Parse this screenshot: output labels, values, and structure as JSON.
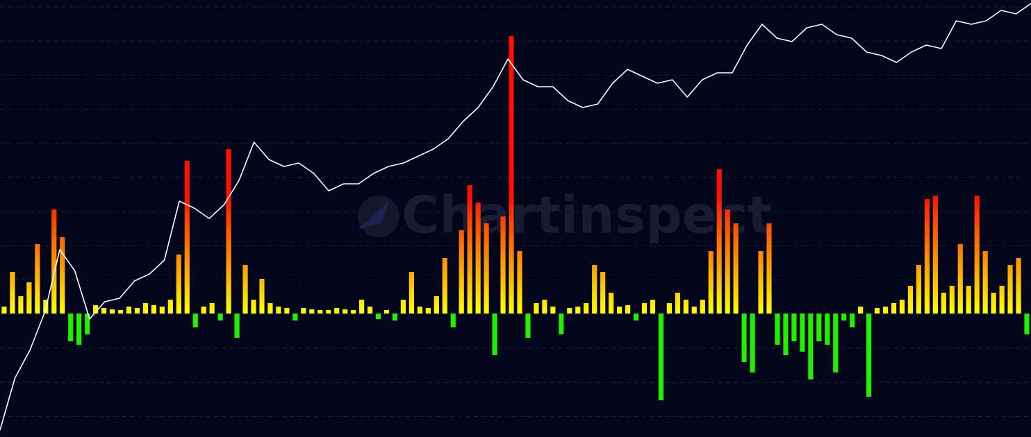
{
  "chart_data": [
    {
      "type": "bar",
      "ylim": [
        -178,
        452
      ],
      "up_colors": [
        "#ffff00",
        "#ff1000"
      ],
      "down_color": "#22ee00",
      "values": [
        10,
        60,
        25,
        45,
        100,
        20,
        150,
        110,
        -40,
        -45,
        -30,
        12,
        8,
        6,
        5,
        10,
        8,
        15,
        12,
        10,
        20,
        85,
        220,
        -20,
        10,
        15,
        -10,
        237,
        -35,
        70,
        20,
        50,
        15,
        10,
        8,
        -10,
        8,
        6,
        5,
        5,
        8,
        6,
        5,
        20,
        10,
        -8,
        5,
        -10,
        20,
        60,
        10,
        8,
        25,
        80,
        -20,
        120,
        185,
        160,
        130,
        -60,
        140,
        400,
        90,
        -35,
        15,
        20,
        10,
        -30,
        8,
        10,
        15,
        70,
        60,
        30,
        10,
        12,
        -10,
        15,
        20,
        -125,
        15,
        30,
        20,
        10,
        20,
        90,
        208,
        150,
        130,
        -70,
        -85,
        90,
        130,
        -45,
        -60,
        -40,
        -55,
        -95,
        -40,
        -45,
        -85,
        -10,
        -20,
        10,
        -120,
        8,
        10,
        15,
        20,
        40,
        70,
        165,
        170,
        30,
        40,
        100,
        40,
        170,
        90,
        30,
        40,
        70,
        80,
        -30
      ]
    },
    {
      "type": "line",
      "ylim": [
        0,
        630
      ],
      "color": "#ffffff",
      "values": [
        10,
        85,
        125,
        180,
        270,
        240,
        170,
        195,
        200,
        225,
        235,
        255,
        340,
        330,
        315,
        335,
        370,
        425,
        400,
        390,
        395,
        380,
        355,
        365,
        365,
        380,
        390,
        395,
        405,
        415,
        430,
        455,
        475,
        505,
        545,
        515,
        505,
        505,
        485,
        475,
        480,
        510,
        530,
        520,
        510,
        515,
        490,
        515,
        525,
        525,
        565,
        595,
        575,
        570,
        590,
        595,
        580,
        575,
        555,
        550,
        540,
        555,
        565,
        560,
        600,
        595,
        600,
        615,
        610,
        625
      ]
    }
  ],
  "watermark": "Chartinspect"
}
